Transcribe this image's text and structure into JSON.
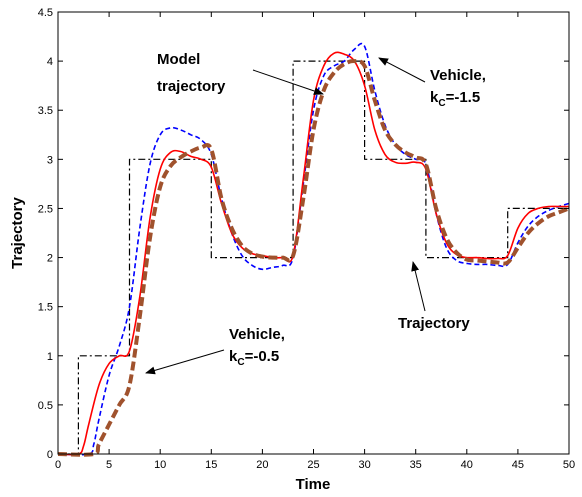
{
  "chart_data": {
    "type": "line",
    "title": "",
    "xlabel": "Time",
    "ylabel": "Trajectory",
    "xlim": [
      0,
      50
    ],
    "ylim": [
      0,
      4.5
    ],
    "xticks": [
      0,
      5,
      10,
      15,
      20,
      25,
      30,
      35,
      40,
      45,
      50
    ],
    "yticks": [
      0,
      0.5,
      1,
      1.5,
      2,
      2.5,
      3,
      3.5,
      4,
      4.5
    ],
    "grid": false,
    "legend": "none",
    "series": [
      {
        "name": "Trajectory",
        "color": "#000000",
        "style": "dash-dot",
        "points": [
          [
            0,
            0
          ],
          [
            2,
            0
          ],
          [
            2,
            1
          ],
          [
            7,
            1
          ],
          [
            7,
            3
          ],
          [
            15,
            3
          ],
          [
            15,
            2
          ],
          [
            23,
            2
          ],
          [
            23,
            4
          ],
          [
            30,
            4
          ],
          [
            30,
            3
          ],
          [
            36,
            3
          ],
          [
            36,
            2
          ],
          [
            44,
            2
          ],
          [
            44,
            2.5
          ],
          [
            50,
            2.5
          ]
        ]
      },
      {
        "name": "Model trajectory",
        "color": "#ff0000",
        "style": "solid",
        "points": [
          [
            0,
            0
          ],
          [
            2,
            0
          ],
          [
            2.5,
            0.08
          ],
          [
            3,
            0.3
          ],
          [
            4,
            0.7
          ],
          [
            5,
            0.92
          ],
          [
            6,
            1.0
          ],
          [
            7,
            1.05
          ],
          [
            8,
            1.6
          ],
          [
            9,
            2.4
          ],
          [
            10,
            2.9
          ],
          [
            11,
            3.07
          ],
          [
            12,
            3.08
          ],
          [
            13,
            3.03
          ],
          [
            14,
            3.0
          ],
          [
            15,
            2.92
          ],
          [
            16,
            2.55
          ],
          [
            17,
            2.25
          ],
          [
            18,
            2.1
          ],
          [
            19,
            2.04
          ],
          [
            20,
            2.02
          ],
          [
            21,
            2.0
          ],
          [
            22,
            2.0
          ],
          [
            23,
            2.02
          ],
          [
            24,
            2.8
          ],
          [
            25,
            3.6
          ],
          [
            26,
            3.95
          ],
          [
            27,
            4.08
          ],
          [
            28,
            4.07
          ],
          [
            29,
            4.0
          ],
          [
            30,
            3.75
          ],
          [
            31,
            3.3
          ],
          [
            32,
            3.05
          ],
          [
            33,
            2.97
          ],
          [
            34,
            2.96
          ],
          [
            35,
            2.97
          ],
          [
            36,
            2.9
          ],
          [
            37,
            2.45
          ],
          [
            38,
            2.15
          ],
          [
            39,
            2.03
          ],
          [
            40,
            2.0
          ],
          [
            41,
            2.0
          ],
          [
            42,
            1.99
          ],
          [
            43,
            1.99
          ],
          [
            44,
            2.02
          ],
          [
            45,
            2.3
          ],
          [
            46,
            2.45
          ],
          [
            47,
            2.5
          ],
          [
            48,
            2.52
          ],
          [
            49,
            2.52
          ],
          [
            50,
            2.52
          ]
        ]
      },
      {
        "name": "Vehicle, kC=-1.5",
        "color": "#0000ff",
        "style": "dashed",
        "points": [
          [
            0,
            0
          ],
          [
            3,
            0
          ],
          [
            3.5,
            0.1
          ],
          [
            4,
            0.35
          ],
          [
            5,
            0.8
          ],
          [
            6,
            1.1
          ],
          [
            7,
            1.5
          ],
          [
            8,
            2.3
          ],
          [
            9,
            2.95
          ],
          [
            10,
            3.25
          ],
          [
            11,
            3.32
          ],
          [
            12,
            3.3
          ],
          [
            13,
            3.25
          ],
          [
            14,
            3.2
          ],
          [
            15,
            3.05
          ],
          [
            16,
            2.6
          ],
          [
            17,
            2.25
          ],
          [
            18,
            2.02
          ],
          [
            19,
            1.92
          ],
          [
            20,
            1.88
          ],
          [
            21,
            1.9
          ],
          [
            22,
            1.92
          ],
          [
            23,
            2.0
          ],
          [
            24,
            2.75
          ],
          [
            25,
            3.5
          ],
          [
            26,
            3.85
          ],
          [
            27,
            3.95
          ],
          [
            28,
            4.0
          ],
          [
            29,
            4.12
          ],
          [
            30,
            4.15
          ],
          [
            31,
            3.7
          ],
          [
            32,
            3.35
          ],
          [
            33,
            3.15
          ],
          [
            34,
            3.05
          ],
          [
            35,
            3.0
          ],
          [
            36,
            2.95
          ],
          [
            37,
            2.45
          ],
          [
            38,
            2.1
          ],
          [
            39,
            1.97
          ],
          [
            40,
            1.94
          ],
          [
            41,
            1.93
          ],
          [
            42,
            1.93
          ],
          [
            43,
            1.92
          ],
          [
            44,
            1.93
          ],
          [
            45,
            2.15
          ],
          [
            46,
            2.32
          ],
          [
            47,
            2.42
          ],
          [
            48,
            2.48
          ],
          [
            49,
            2.52
          ],
          [
            50,
            2.55
          ]
        ]
      },
      {
        "name": "Vehicle, kC=-0.5",
        "color": "#a0522d",
        "style": "thick-dashed",
        "points": [
          [
            0,
            0
          ],
          [
            3.5,
            0
          ],
          [
            4,
            0.1
          ],
          [
            5,
            0.3
          ],
          [
            6,
            0.5
          ],
          [
            7,
            0.7
          ],
          [
            8,
            1.4
          ],
          [
            9,
            2.2
          ],
          [
            10,
            2.72
          ],
          [
            11,
            2.93
          ],
          [
            12,
            3.02
          ],
          [
            13,
            3.08
          ],
          [
            14,
            3.12
          ],
          [
            15,
            3.1
          ],
          [
            16,
            2.6
          ],
          [
            17,
            2.3
          ],
          [
            18,
            2.12
          ],
          [
            19,
            2.04
          ],
          [
            20,
            2.01
          ],
          [
            21,
            2.0
          ],
          [
            22,
            2.0
          ],
          [
            23,
            2.02
          ],
          [
            24,
            2.6
          ],
          [
            25,
            3.3
          ],
          [
            26,
            3.7
          ],
          [
            27,
            3.88
          ],
          [
            28,
            3.97
          ],
          [
            29,
            4.0
          ],
          [
            30,
            3.95
          ],
          [
            31,
            3.6
          ],
          [
            32,
            3.3
          ],
          [
            33,
            3.15
          ],
          [
            34,
            3.07
          ],
          [
            35,
            3.02
          ],
          [
            36,
            2.95
          ],
          [
            37,
            2.5
          ],
          [
            38,
            2.2
          ],
          [
            39,
            2.05
          ],
          [
            40,
            1.98
          ],
          [
            41,
            1.97
          ],
          [
            42,
            1.96
          ],
          [
            43,
            1.95
          ],
          [
            44,
            1.95
          ],
          [
            45,
            2.1
          ],
          [
            46,
            2.25
          ],
          [
            47,
            2.35
          ],
          [
            48,
            2.42
          ],
          [
            49,
            2.46
          ],
          [
            50,
            2.5
          ]
        ]
      }
    ],
    "annotations": [
      {
        "lines": [
          "Model",
          "trajectory"
        ],
        "points_to": "Model trajectory"
      },
      {
        "lines": [
          "Vehicle,",
          "k",
          "C",
          "=-1.5"
        ],
        "points_to": "Vehicle, kC=-1.5"
      },
      {
        "lines": [
          "Vehicle,",
          "k",
          "C",
          "=-0.5"
        ],
        "points_to": "Vehicle, kC=-0.5"
      },
      {
        "lines": [
          "Trajectory"
        ],
        "points_to": "Trajectory"
      }
    ]
  }
}
